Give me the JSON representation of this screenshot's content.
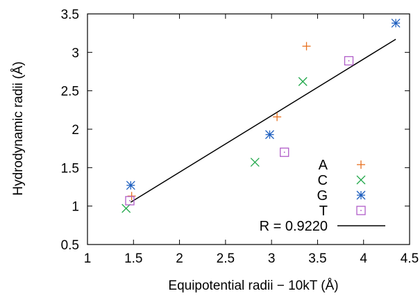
{
  "chart_data": {
    "type": "scatter",
    "xlabel": "Equipotential radii − 10kT  (Å)",
    "ylabel": "Hydrodynamic radii  (Å)",
    "xlim": [
      1,
      4.5
    ],
    "ylim": [
      0.5,
      3.5
    ],
    "xticks": [
      1,
      1.5,
      2,
      2.5,
      3,
      3.5,
      4,
      4.5
    ],
    "xtick_labels": [
      "1",
      "1.5",
      "2",
      "2.5",
      "3",
      "3.5",
      "4",
      "4.5"
    ],
    "yticks": [
      0.5,
      1,
      1.5,
      2,
      2.5,
      3,
      3.5
    ],
    "ytick_labels": [
      "0.5",
      "1",
      "1.5",
      "2",
      "2.5",
      "3",
      "3.5"
    ],
    "grid": false,
    "legend_position": "bottom-right",
    "series": [
      {
        "name": "A",
        "marker": "plus",
        "color": "#e8711f",
        "points": [
          [
            1.48,
            1.13
          ],
          [
            3.06,
            2.16
          ],
          [
            3.38,
            3.08
          ]
        ]
      },
      {
        "name": "C",
        "marker": "cross",
        "color": "#21a84a",
        "points": [
          [
            1.42,
            0.97
          ],
          [
            2.82,
            1.57
          ],
          [
            3.34,
            2.62
          ]
        ]
      },
      {
        "name": "G",
        "marker": "star",
        "color": "#1e5fbf",
        "points": [
          [
            1.47,
            1.27
          ],
          [
            2.98,
            1.93
          ],
          [
            4.35,
            3.38
          ]
        ]
      },
      {
        "name": "T",
        "marker": "square",
        "color": "#b05cc8",
        "points": [
          [
            1.46,
            1.07
          ],
          [
            3.14,
            1.7
          ],
          [
            3.84,
            2.89
          ]
        ]
      }
    ],
    "fit_line": {
      "label": "R = 0.9220",
      "color": "#000000",
      "x": [
        1.47,
        4.35
      ],
      "y": [
        1.05,
        3.17
      ]
    }
  }
}
